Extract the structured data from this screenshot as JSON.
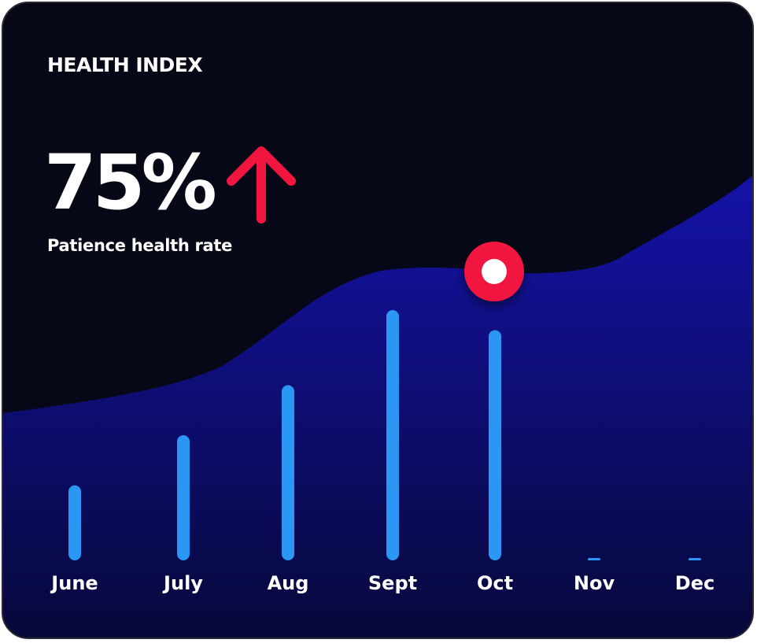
{
  "header": {
    "title": "HEALTH INDEX",
    "value": "75%",
    "caption": "Patience health rate",
    "trend_icon": "arrow-up-icon",
    "trend_color": "#f0163f"
  },
  "colors": {
    "background": "#070817",
    "area_top": "#1412a8",
    "area_bottom": "#07083a",
    "bar": "#2a97f5",
    "marker": "#f0163f",
    "text": "#ffffff"
  },
  "chart_data": {
    "type": "bar",
    "categories": [
      "June",
      "July",
      "Aug",
      "Sept",
      "Oct",
      "Nov",
      "Dec"
    ],
    "values": [
      30,
      50,
      70,
      100,
      92,
      0,
      0
    ],
    "ylim": [
      0,
      100
    ],
    "highlight": "Oct",
    "grid": false,
    "overlay": "area trend line with circular marker above Oct"
  }
}
